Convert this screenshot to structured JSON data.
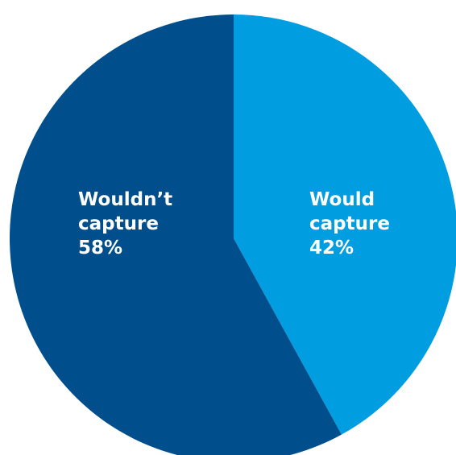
{
  "chart_data": {
    "type": "pie",
    "start_angle_deg": 0,
    "direction": "clockwise",
    "slices": [
      {
        "label_lines": [
          "Would",
          "capture"
        ],
        "value_label": "42%",
        "value": 42,
        "color": "#009ee0"
      },
      {
        "label_lines": [
          "Wouldn’t",
          "capture"
        ],
        "value_label": "58%",
        "value": 58,
        "color": "#004f8c"
      }
    ]
  }
}
